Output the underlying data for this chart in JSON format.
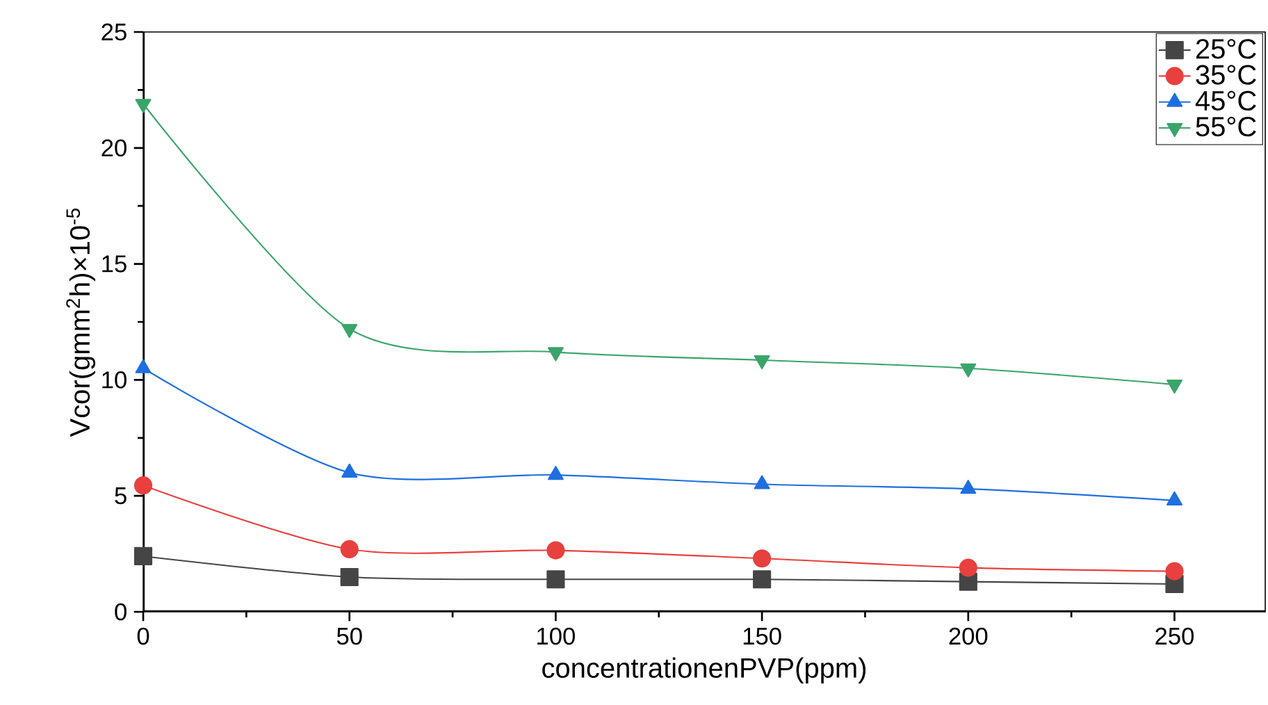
{
  "chart_data": {
    "type": "line",
    "xlabel": "concentrationenPVP(ppm)",
    "ylabel": "Vcor(gmm$^{2}$h)×10$^{-5}$",
    "x": [
      0,
      50,
      100,
      150,
      200,
      250
    ],
    "xlim": [
      0,
      272
    ],
    "xticks": [
      0,
      50,
      100,
      150,
      200,
      250
    ],
    "ylim": [
      0,
      25
    ],
    "yticks": [
      0,
      5,
      10,
      15,
      20,
      25
    ],
    "grid": false,
    "legend": "top right",
    "line_style": "solid",
    "series": [
      {
        "name": "25°C",
        "color": "#454545",
        "marker": "square",
        "values": [
          2.4,
          1.5,
          1.4,
          1.4,
          1.3,
          1.2
        ]
      },
      {
        "name": "35°C",
        "color": "#e8403f",
        "marker": "circle",
        "values": [
          5.45,
          2.7,
          2.65,
          2.3,
          1.9,
          1.75
        ]
      },
      {
        "name": "45°C",
        "color": "#1f6fe0",
        "marker": "triangle",
        "values": [
          10.5,
          6.0,
          5.9,
          5.5,
          5.3,
          4.8
        ]
      },
      {
        "name": "55°C",
        "color": "#3aa56a",
        "marker": "triangle-down",
        "values": [
          21.9,
          12.2,
          11.2,
          10.85,
          10.5,
          9.8
        ]
      }
    ]
  }
}
